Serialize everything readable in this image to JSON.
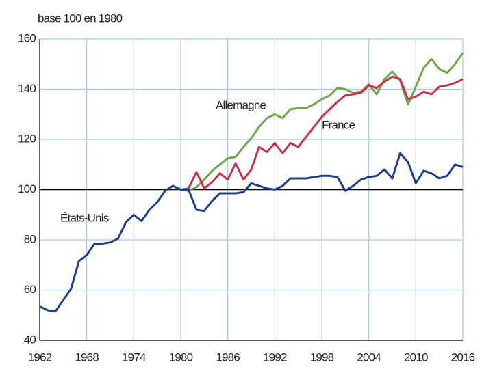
{
  "chart_data": {
    "type": "line",
    "y_label": "base 100 en 1980",
    "x": [
      1962,
      1963,
      1964,
      1965,
      1966,
      1967,
      1968,
      1969,
      1970,
      1971,
      1972,
      1973,
      1974,
      1975,
      1976,
      1977,
      1978,
      1979,
      1980,
      1981,
      1982,
      1983,
      1984,
      1985,
      1986,
      1987,
      1988,
      1989,
      1990,
      1991,
      1992,
      1993,
      1994,
      1995,
      1996,
      1997,
      1998,
      1999,
      2000,
      2001,
      2002,
      2003,
      2004,
      2005,
      2006,
      2007,
      2008,
      2009,
      2010,
      2011,
      2012,
      2013,
      2014,
      2015,
      2016
    ],
    "xlim": [
      1962,
      2016
    ],
    "xticks": [
      1962,
      1968,
      1974,
      1980,
      1986,
      1992,
      1998,
      2004,
      2010,
      2016
    ],
    "ylim": [
      40,
      160
    ],
    "yticks": [
      40,
      60,
      80,
      100,
      120,
      140,
      160
    ],
    "reference_line": 100,
    "grid": true,
    "series": [
      {
        "name": "États-Unis",
        "color": "#1f3f8c",
        "values": [
          53.5,
          52,
          51.5,
          56,
          60.5,
          71.5,
          74,
          78.5,
          78.5,
          79,
          80.5,
          87,
          90,
          87.5,
          92,
          95,
          99.5,
          101.5,
          100,
          100,
          92,
          91.5,
          95.5,
          98.5,
          98.5,
          98.5,
          99,
          102.5,
          101.5,
          100.5,
          100,
          101.5,
          104.5,
          104.5,
          104.5,
          105,
          105.5,
          105.5,
          105,
          99.5,
          101.5,
          104,
          105,
          105.5,
          108,
          104.5,
          114.5,
          111,
          102.5,
          107.5,
          106.5,
          104.5,
          105.5,
          110,
          109
        ]
      },
      {
        "name": "France",
        "color": "#c8324e",
        "values": [
          null,
          null,
          null,
          null,
          null,
          null,
          null,
          null,
          null,
          null,
          null,
          null,
          null,
          null,
          null,
          null,
          null,
          null,
          100,
          100.5,
          107,
          100.5,
          103,
          106.5,
          104,
          110.5,
          104,
          108,
          117,
          115,
          118.5,
          114.5,
          118.5,
          117,
          121,
          125,
          129,
          132,
          135,
          137.5,
          138,
          138.5,
          141.5,
          140.5,
          143,
          145,
          144,
          136,
          137,
          139,
          138,
          141,
          141.5,
          142.5,
          144
        ]
      },
      {
        "name": "Allemagne",
        "color": "#6fa84a",
        "values": [
          null,
          null,
          null,
          null,
          null,
          null,
          null,
          null,
          null,
          null,
          null,
          null,
          null,
          null,
          null,
          null,
          null,
          null,
          100,
          99.5,
          101,
          104,
          107.5,
          110,
          112.5,
          113,
          117,
          120.5,
          125,
          128.5,
          130,
          128.5,
          132,
          132.5,
          132.5,
          134,
          136,
          137.5,
          140.5,
          140,
          138.5,
          139,
          142,
          138,
          144,
          147,
          143.5,
          134,
          141,
          148.5,
          152,
          148,
          146.5,
          150,
          154.5
        ]
      }
    ]
  }
}
